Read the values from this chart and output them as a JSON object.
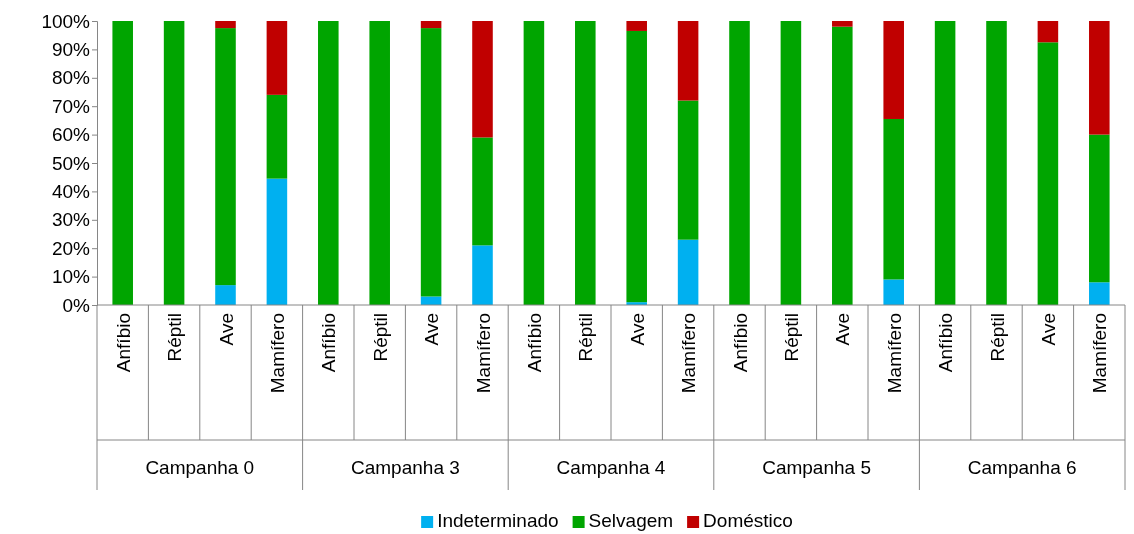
{
  "chart_data": {
    "type": "bar",
    "stacked": true,
    "categories": [
      "Anfíbio",
      "Réptil",
      "Ave",
      "Mamífero",
      "Anfíbio",
      "Réptil",
      "Ave",
      "Mamífero",
      "Anfíbio",
      "Réptil",
      "Ave",
      "Mamífero",
      "Anfíbio",
      "Réptil",
      "Ave",
      "Mamífero",
      "Anfíbio",
      "Réptil",
      "Ave",
      "Mamífero"
    ],
    "series": [
      {
        "name": "Indeterminado",
        "color": "#00b0f0",
        "values": [
          0,
          0,
          7,
          44.5,
          0,
          0,
          3,
          21,
          0,
          0,
          1,
          23,
          0,
          0,
          0,
          9,
          0,
          0,
          0,
          8
        ]
      },
      {
        "name": "Selvagem",
        "color": "#00a500",
        "values": [
          100,
          100,
          90.5,
          29.5,
          100,
          100,
          94.5,
          38,
          100,
          100,
          95.5,
          49,
          100,
          100,
          98,
          56.5,
          100,
          100,
          92.5,
          52
        ]
      },
      {
        "name": "Doméstico",
        "color": "#c00000",
        "values": [
          0,
          0,
          2.5,
          26,
          0,
          0,
          2.5,
          41,
          0,
          0,
          3.5,
          28,
          0,
          0,
          2,
          34.5,
          0,
          0,
          7.5,
          40
        ]
      }
    ],
    "ylim": [
      0,
      100
    ],
    "yticks": [
      {
        "value": 0,
        "label": "0%"
      },
      {
        "value": 10,
        "label": "10%"
      },
      {
        "value": 20,
        "label": "20%"
      },
      {
        "value": 30,
        "label": "30%"
      },
      {
        "value": 40,
        "label": "40%"
      },
      {
        "value": 50,
        "label": "50%"
      },
      {
        "value": 60,
        "label": "60%"
      },
      {
        "value": 70,
        "label": "70%"
      },
      {
        "value": 80,
        "label": "80%"
      },
      {
        "value": 90,
        "label": "90%"
      },
      {
        "value": 100,
        "label": "100%"
      }
    ],
    "annotations": [
      "Campanha 0",
      "Campanha 3",
      "Campanha 4",
      "Campanha 5",
      "Campanha 6"
    ],
    "grid": false,
    "legend": "bottom"
  }
}
